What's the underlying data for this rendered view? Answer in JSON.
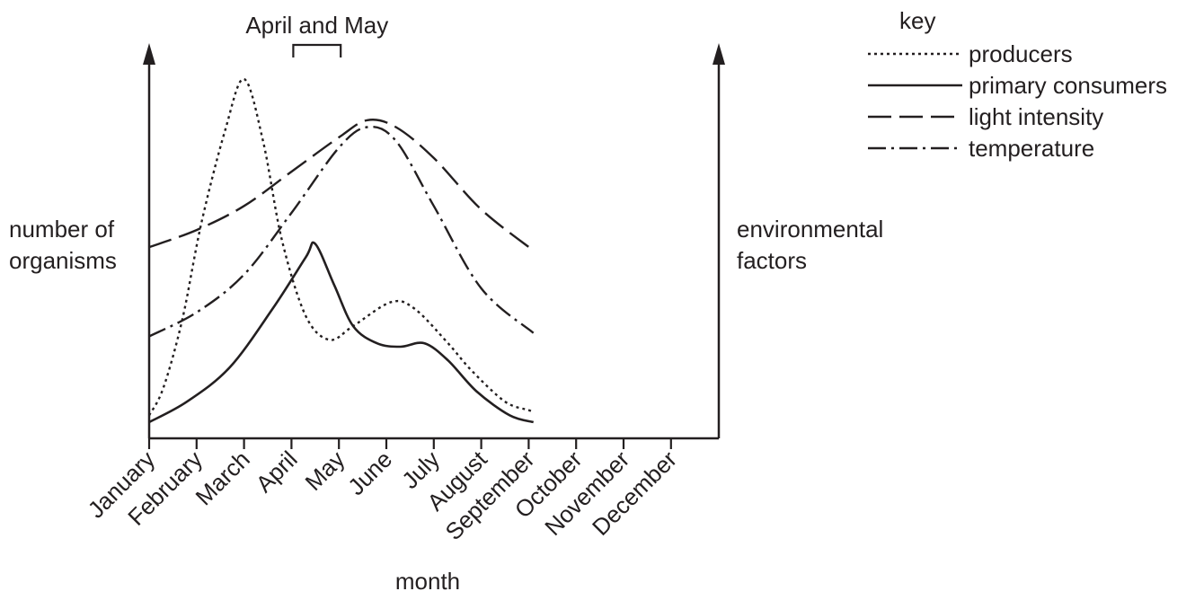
{
  "chart_data": {
    "type": "line",
    "xlabel": "month",
    "ylabel_left": [
      "number of",
      "organisms"
    ],
    "ylabel_right": [
      "environmental",
      "factors"
    ],
    "categories": [
      "January",
      "February",
      "March",
      "April",
      "May",
      "June",
      "July",
      "August",
      "September",
      "October",
      "November",
      "December"
    ],
    "bracket": {
      "label": "April and May",
      "from": "April",
      "to": "May"
    },
    "legend": {
      "title": "key",
      "placement": "top-right"
    },
    "ylim": [
      0,
      100
    ],
    "grid": false,
    "series": [
      {
        "name": "producers",
        "style": "dotted",
        "points": [
          [
            0,
            2
          ],
          [
            0.3,
            10
          ],
          [
            0.7,
            30
          ],
          [
            1.1,
            58
          ],
          [
            1.6,
            85
          ],
          [
            2.0,
            100
          ],
          [
            2.4,
            82
          ],
          [
            2.8,
            53
          ],
          [
            3.3,
            31
          ],
          [
            3.8,
            24
          ],
          [
            4.3,
            28
          ],
          [
            5.1,
            35
          ],
          [
            5.6,
            33
          ],
          [
            6.3,
            23
          ],
          [
            6.8,
            15
          ],
          [
            7.5,
            6
          ],
          [
            8.0,
            3.5
          ],
          [
            8.1,
            3
          ]
        ]
      },
      {
        "name": "primary consumers",
        "style": "solid",
        "points": [
          [
            0,
            0
          ],
          [
            0.8,
            6
          ],
          [
            1.7,
            16
          ],
          [
            2.6,
            33
          ],
          [
            3.3,
            48
          ],
          [
            3.5,
            52
          ],
          [
            3.9,
            40
          ],
          [
            4.3,
            28
          ],
          [
            4.8,
            23
          ],
          [
            5.3,
            22
          ],
          [
            5.8,
            23
          ],
          [
            6.3,
            18
          ],
          [
            6.9,
            9
          ],
          [
            7.6,
            2
          ],
          [
            8.1,
            0
          ]
        ]
      },
      {
        "name": "light intensity",
        "style": "dashed",
        "points": [
          [
            0,
            51
          ],
          [
            1,
            56
          ],
          [
            2,
            63
          ],
          [
            3,
            73
          ],
          [
            4,
            83
          ],
          [
            4.6,
            88
          ],
          [
            5.2,
            86
          ],
          [
            6,
            77
          ],
          [
            7,
            62
          ],
          [
            8.1,
            50
          ]
        ]
      },
      {
        "name": "temperature",
        "style": "dash-dot",
        "points": [
          [
            0,
            25
          ],
          [
            1,
            32
          ],
          [
            2,
            43
          ],
          [
            3,
            61
          ],
          [
            4,
            80
          ],
          [
            4.6,
            86
          ],
          [
            5.2,
            82
          ],
          [
            6,
            63
          ],
          [
            7,
            39
          ],
          [
            8.1,
            26
          ]
        ]
      }
    ]
  }
}
